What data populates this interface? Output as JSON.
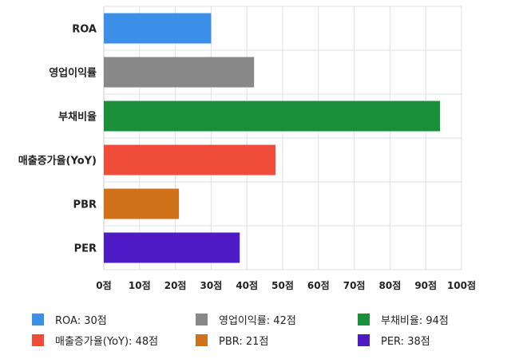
{
  "chart_data": {
    "type": "bar",
    "orientation": "horizontal",
    "categories": [
      "ROA",
      "영업이익률",
      "부채비율",
      "매출증가율(YoY)",
      "PBR",
      "PER"
    ],
    "values": [
      30,
      42,
      94,
      48,
      21,
      38
    ],
    "colors": [
      "#3b8fe6",
      "#888888",
      "#1a8f3a",
      "#ef4c39",
      "#d07219",
      "#4f1bc4"
    ],
    "xlim": [
      0,
      100
    ],
    "x_ticks": [
      0,
      10,
      20,
      30,
      40,
      50,
      60,
      70,
      80,
      90,
      100
    ],
    "tick_suffix": "점",
    "grid": true,
    "legend_position": "bottom",
    "legend": [
      "ROA: 30점",
      "영업이익률: 42점",
      "부채비율: 94점",
      "매출증가율(YoY): 48점",
      "PBR: 21점",
      "PER: 38점"
    ]
  }
}
